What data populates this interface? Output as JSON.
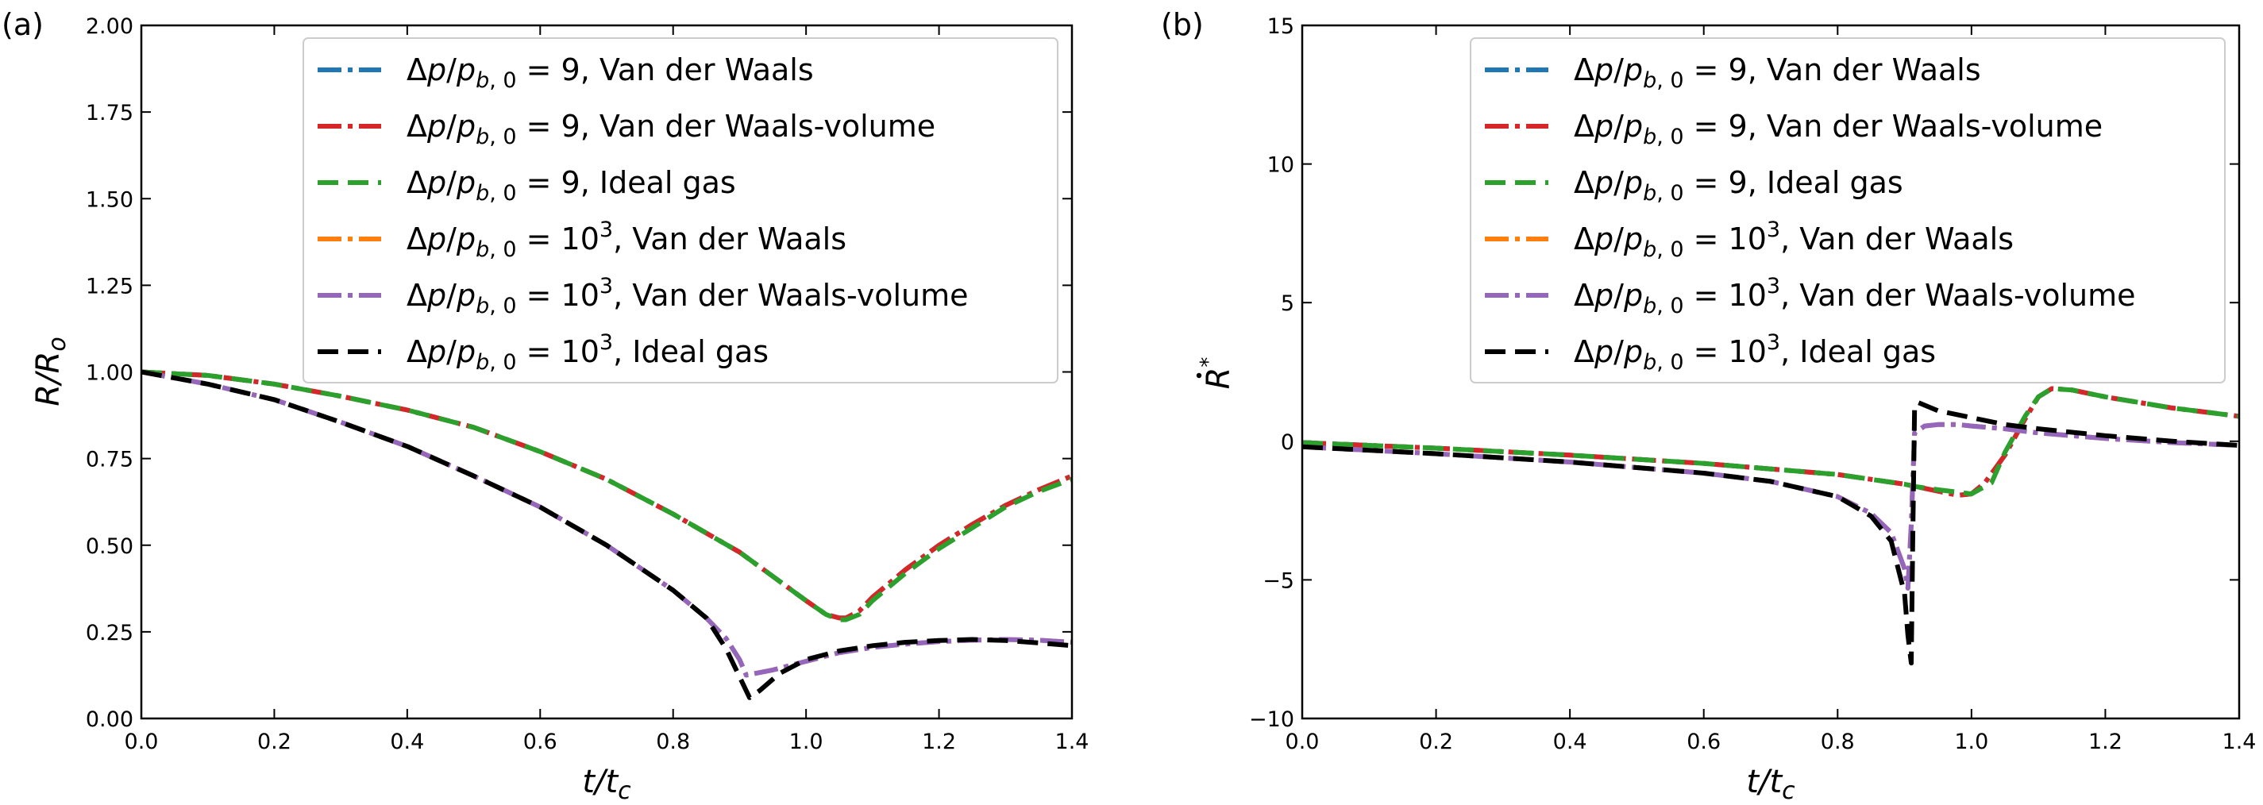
{
  "chart_data": [
    {
      "type": "line",
      "panel_label": "(a)",
      "xlabel": "t/t_c",
      "ylabel": "R/R_o",
      "xlim": [
        0.0,
        1.4
      ],
      "ylim": [
        0.0,
        2.0
      ],
      "x_ticks": [
        "0.0",
        "0.2",
        "0.4",
        "0.6",
        "0.8",
        "1.0",
        "1.2",
        "1.4"
      ],
      "y_ticks": [
        "0.00",
        "0.25",
        "0.50",
        "0.75",
        "1.00",
        "1.25",
        "1.50",
        "1.75",
        "2.00"
      ],
      "legend_position": "top-right",
      "series": [
        {
          "name": "Δp/p_b,0 = 9, Van der Waals",
          "color": "#1f77b4",
          "style": "dashdot",
          "x": [
            0.0,
            0.1,
            0.2,
            0.3,
            0.4,
            0.5,
            0.6,
            0.7,
            0.8,
            0.9,
            0.95,
            1.0,
            1.03,
            1.05,
            1.06,
            1.08,
            1.1,
            1.15,
            1.2,
            1.25,
            1.3,
            1.35,
            1.4
          ],
          "y": [
            1.0,
            0.99,
            0.965,
            0.93,
            0.89,
            0.84,
            0.77,
            0.69,
            0.59,
            0.48,
            0.41,
            0.34,
            0.3,
            0.29,
            0.29,
            0.31,
            0.35,
            0.43,
            0.5,
            0.56,
            0.615,
            0.66,
            0.7
          ]
        },
        {
          "name": "Δp/p_b,0 = 9, Van der Waals-volume",
          "color": "#d62728",
          "style": "dashdot",
          "x": [
            0.0,
            0.1,
            0.2,
            0.3,
            0.4,
            0.5,
            0.6,
            0.7,
            0.8,
            0.9,
            0.95,
            1.0,
            1.03,
            1.05,
            1.06,
            1.08,
            1.1,
            1.15,
            1.2,
            1.25,
            1.3,
            1.35,
            1.4
          ],
          "y": [
            1.0,
            0.99,
            0.965,
            0.93,
            0.89,
            0.84,
            0.77,
            0.69,
            0.59,
            0.48,
            0.41,
            0.34,
            0.3,
            0.29,
            0.29,
            0.31,
            0.35,
            0.43,
            0.5,
            0.56,
            0.615,
            0.66,
            0.7
          ]
        },
        {
          "name": "Δp/p_b,0 = 9, Ideal gas",
          "color": "#2ca02c",
          "style": "dashed",
          "x": [
            0.0,
            0.1,
            0.2,
            0.3,
            0.4,
            0.5,
            0.6,
            0.7,
            0.8,
            0.9,
            0.95,
            1.0,
            1.03,
            1.05,
            1.06,
            1.08,
            1.1,
            1.15,
            1.2,
            1.25,
            1.3,
            1.35,
            1.4
          ],
          "y": [
            1.0,
            0.99,
            0.965,
            0.93,
            0.89,
            0.84,
            0.77,
            0.69,
            0.59,
            0.48,
            0.41,
            0.34,
            0.3,
            0.285,
            0.285,
            0.3,
            0.34,
            0.42,
            0.49,
            0.55,
            0.61,
            0.655,
            0.69
          ]
        },
        {
          "name": "Δp/p_b,0 = 10^3, Van der Waals",
          "color": "#ff7f0e",
          "style": "dashdot",
          "x": [
            0.0,
            0.1,
            0.2,
            0.3,
            0.4,
            0.5,
            0.6,
            0.7,
            0.8,
            0.85,
            0.88,
            0.9,
            0.91,
            0.95,
            1.0,
            1.05,
            1.1,
            1.15,
            1.2,
            1.25,
            1.3,
            1.35,
            1.4
          ],
          "y": [
            1.0,
            0.965,
            0.92,
            0.855,
            0.785,
            0.7,
            0.61,
            0.5,
            0.37,
            0.29,
            0.23,
            0.17,
            0.125,
            0.14,
            0.165,
            0.19,
            0.205,
            0.215,
            0.222,
            0.226,
            0.228,
            0.226,
            0.22
          ]
        },
        {
          "name": "Δp/p_b,0 = 10^3, Van der Waals-volume",
          "color": "#9467bd",
          "style": "dashdot",
          "x": [
            0.0,
            0.1,
            0.2,
            0.3,
            0.4,
            0.5,
            0.6,
            0.7,
            0.8,
            0.85,
            0.88,
            0.9,
            0.91,
            0.95,
            1.0,
            1.05,
            1.1,
            1.15,
            1.2,
            1.25,
            1.3,
            1.35,
            1.4
          ],
          "y": [
            1.0,
            0.965,
            0.92,
            0.855,
            0.785,
            0.7,
            0.61,
            0.5,
            0.37,
            0.29,
            0.23,
            0.17,
            0.125,
            0.14,
            0.165,
            0.19,
            0.205,
            0.215,
            0.222,
            0.226,
            0.228,
            0.226,
            0.22
          ]
        },
        {
          "name": "Δp/p_b,0 = 10^3, Ideal gas",
          "color": "#000000",
          "style": "dashed",
          "x": [
            0.0,
            0.1,
            0.2,
            0.3,
            0.4,
            0.5,
            0.6,
            0.7,
            0.8,
            0.85,
            0.88,
            0.9,
            0.915,
            0.93,
            0.96,
            1.0,
            1.05,
            1.1,
            1.15,
            1.2,
            1.25,
            1.3,
            1.35,
            1.4
          ],
          "y": [
            1.0,
            0.965,
            0.92,
            0.855,
            0.785,
            0.7,
            0.61,
            0.5,
            0.37,
            0.29,
            0.2,
            0.12,
            0.06,
            0.08,
            0.13,
            0.17,
            0.195,
            0.21,
            0.22,
            0.225,
            0.228,
            0.225,
            0.218,
            0.21
          ]
        }
      ]
    },
    {
      "type": "line",
      "panel_label": "(b)",
      "xlabel": "t/t_c",
      "ylabel": "R-dot*",
      "xlim": [
        0.0,
        1.4
      ],
      "ylim": [
        -10,
        15
      ],
      "x_ticks": [
        "0.0",
        "0.2",
        "0.4",
        "0.6",
        "0.8",
        "1.0",
        "1.2",
        "1.4"
      ],
      "y_ticks": [
        "−10",
        "−5",
        "0",
        "5",
        "10",
        "15"
      ],
      "legend_position": "top-right",
      "series": [
        {
          "name": "Δp/p_b,0 = 9, Van der Waals",
          "color": "#1f77b4",
          "style": "dashdot",
          "x": [
            0.0,
            0.2,
            0.4,
            0.6,
            0.8,
            0.9,
            0.95,
            0.98,
            1.0,
            1.02,
            1.05,
            1.08,
            1.1,
            1.12,
            1.15,
            1.2,
            1.25,
            1.3,
            1.35,
            1.4
          ],
          "y": [
            -0.05,
            -0.25,
            -0.5,
            -0.8,
            -1.2,
            -1.55,
            -1.8,
            -1.95,
            -1.9,
            -1.5,
            -0.5,
            0.8,
            1.6,
            1.9,
            1.85,
            1.6,
            1.4,
            1.2,
            1.05,
            0.9
          ]
        },
        {
          "name": "Δp/p_b,0 = 9, Van der Waals-volume",
          "color": "#d62728",
          "style": "dashdot",
          "x": [
            0.0,
            0.2,
            0.4,
            0.6,
            0.8,
            0.9,
            0.95,
            0.98,
            1.0,
            1.02,
            1.05,
            1.08,
            1.1,
            1.12,
            1.15,
            1.2,
            1.25,
            1.3,
            1.35,
            1.4
          ],
          "y": [
            -0.05,
            -0.25,
            -0.5,
            -0.8,
            -1.2,
            -1.55,
            -1.8,
            -1.95,
            -1.9,
            -1.5,
            -0.5,
            0.8,
            1.6,
            1.9,
            1.85,
            1.6,
            1.4,
            1.2,
            1.05,
            0.9
          ]
        },
        {
          "name": "Δp/p_b,0 = 9, Ideal gas",
          "color": "#2ca02c",
          "style": "dashed",
          "x": [
            0.0,
            0.2,
            0.4,
            0.6,
            0.8,
            0.9,
            0.92,
            0.95,
            1.0,
            1.03,
            1.05,
            1.08,
            1.1,
            1.12,
            1.15,
            1.2,
            1.25,
            1.3,
            1.35,
            1.4
          ],
          "y": [
            -0.05,
            -0.25,
            -0.5,
            -0.8,
            -1.2,
            -1.55,
            -1.65,
            -1.75,
            -1.9,
            -1.5,
            -0.4,
            0.9,
            1.6,
            1.9,
            1.85,
            1.6,
            1.4,
            1.2,
            1.05,
            0.9
          ]
        },
        {
          "name": "Δp/p_b,0 = 10^3, Van der Waals",
          "color": "#ff7f0e",
          "style": "dashdot",
          "x": [
            0.0,
            0.2,
            0.4,
            0.6,
            0.7,
            0.8,
            0.85,
            0.88,
            0.9,
            0.905,
            0.91,
            0.915,
            0.93,
            0.95,
            0.98,
            1.0,
            1.05,
            1.1,
            1.2,
            1.3,
            1.4
          ],
          "y": [
            -0.2,
            -0.45,
            -0.75,
            -1.15,
            -1.45,
            -2.0,
            -2.6,
            -3.3,
            -4.6,
            -5.3,
            -3.0,
            0.3,
            0.55,
            0.6,
            0.6,
            0.55,
            0.45,
            0.3,
            0.1,
            -0.05,
            -0.15
          ]
        },
        {
          "name": "Δp/p_b,0 = 10^3, Van der Waals-volume",
          "color": "#9467bd",
          "style": "dashdot",
          "x": [
            0.0,
            0.2,
            0.4,
            0.6,
            0.7,
            0.8,
            0.85,
            0.88,
            0.9,
            0.905,
            0.91,
            0.915,
            0.93,
            0.95,
            0.98,
            1.0,
            1.05,
            1.1,
            1.2,
            1.3,
            1.4
          ],
          "y": [
            -0.2,
            -0.45,
            -0.75,
            -1.15,
            -1.45,
            -2.0,
            -2.6,
            -3.3,
            -4.6,
            -5.3,
            -3.0,
            0.3,
            0.55,
            0.6,
            0.6,
            0.55,
            0.45,
            0.3,
            0.1,
            -0.05,
            -0.15
          ]
        },
        {
          "name": "Δp/p_b,0 = 10^3, Ideal gas",
          "color": "#000000",
          "style": "dashed",
          "x": [
            0.0,
            0.2,
            0.4,
            0.6,
            0.7,
            0.8,
            0.85,
            0.88,
            0.9,
            0.905,
            0.91,
            0.912,
            0.915,
            0.92,
            0.95,
            1.0,
            1.05,
            1.1,
            1.2,
            1.3,
            1.4
          ],
          "y": [
            -0.2,
            -0.45,
            -0.75,
            -1.15,
            -1.45,
            -2.0,
            -2.7,
            -3.6,
            -5.5,
            -7.0,
            -8.0,
            -4.0,
            1.2,
            1.4,
            1.1,
            0.85,
            0.6,
            0.45,
            0.2,
            0.0,
            -0.15
          ]
        }
      ]
    }
  ]
}
